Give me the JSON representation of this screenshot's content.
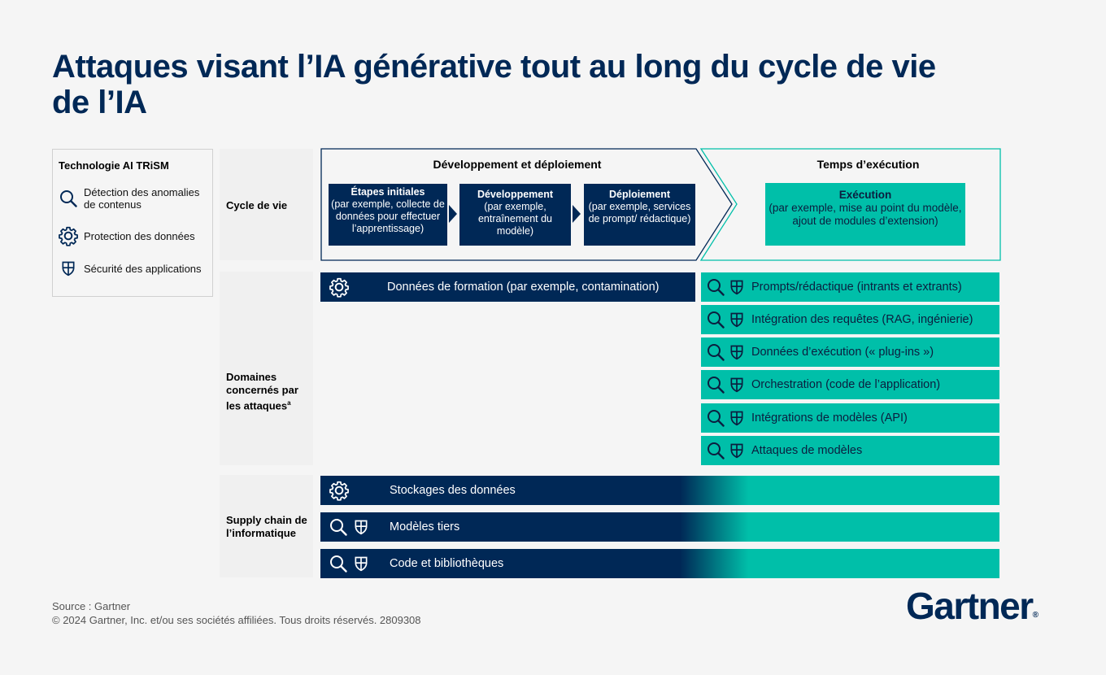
{
  "title": "Attaques visant l’IA générative tout au long du cycle de vie de l’IA",
  "legend": {
    "title": "Technologie AI TRiSM",
    "items": [
      {
        "icon": "search-icon",
        "label": "Détection des anomalies de contenus"
      },
      {
        "icon": "gear-icon",
        "label": "Protection des données"
      },
      {
        "icon": "shield-icon",
        "label": "Sécurité des applications"
      }
    ]
  },
  "rows": {
    "lifecycle": "Cycle de vie",
    "domains": "Domaines concernés par les attaques",
    "domains_note": "a",
    "supply": "Supply chain de l’informatique"
  },
  "phases": {
    "dev": "Développement et déploiement",
    "runtime": "Temps d’exécution"
  },
  "stages": [
    {
      "title": "Étapes initiales",
      "desc": "(par exemple, collecte de données pour effectuer l’apprentissage)"
    },
    {
      "title": "Développement",
      "desc": "(par exemple, entraînement du modèle)"
    },
    {
      "title": "Déploiement",
      "desc": "(par exemple, services de prompt/ rédactique)"
    }
  ],
  "execution": {
    "title": "Exécution",
    "desc": "(par exemple, mise au point du modèle, ajout de modules d’extension)"
  },
  "training_bar": "Données de formation (par exemple, contamination)",
  "runtime_bars": [
    "Prompts/rédactique (intrants et extrants)",
    "Intégration des requêtes (RAG, ingénierie)",
    "Données d’exécution (« plug-ins »)",
    "Orchestration (code de l’application)",
    "Intégrations de modèles (API)",
    "Attaques de modèles"
  ],
  "supply_bars": [
    {
      "label": "Stockages des données",
      "icons": [
        "gear-icon"
      ]
    },
    {
      "label": "Modèles tiers",
      "icons": [
        "search-icon",
        "shield-icon"
      ]
    },
    {
      "label": "Code et bibliothèques",
      "icons": [
        "search-icon",
        "shield-icon"
      ]
    }
  ],
  "source": "Source : Gartner",
  "copyright": "© 2024 Gartner, Inc. et/ou ses sociétés affiliées. Tous droits réservés. 2809308",
  "logo": "Gartner",
  "logo_mark": "®",
  "colors": {
    "navy": "#002856",
    "teal": "#00bfa9"
  }
}
